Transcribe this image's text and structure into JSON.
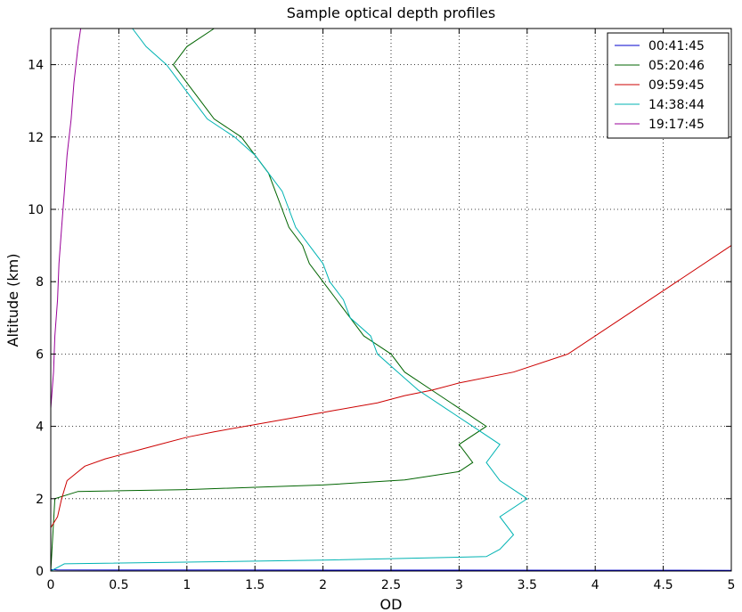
{
  "chart_data": {
    "type": "line",
    "title": "Sample optical depth profiles",
    "xlabel": "OD",
    "ylabel": "Altitude (km)",
    "xlim": [
      0,
      5
    ],
    "ylim": [
      0,
      15
    ],
    "xticks": [
      "0",
      "0.5",
      "1",
      "1.5",
      "2",
      "2.5",
      "3",
      "3.5",
      "4",
      "4.5",
      "5"
    ],
    "yticks": [
      "0",
      "2",
      "4",
      "6",
      "8",
      "10",
      "12",
      "14"
    ],
    "grid": true,
    "legend_position": "top-right",
    "series": [
      {
        "name": "00:41:45",
        "color": "#0000cc",
        "points": [
          [
            5.0,
            0.02
          ],
          [
            0.05,
            0.03
          ],
          [
            0.0,
            0.04
          ]
        ]
      },
      {
        "name": "05:20:46",
        "color": "#006400",
        "points": [
          [
            0.0,
            0.0
          ],
          [
            0.03,
            2.0
          ],
          [
            0.2,
            2.2
          ],
          [
            1.0,
            2.25
          ],
          [
            2.0,
            2.38
          ],
          [
            2.6,
            2.52
          ],
          [
            3.0,
            2.75
          ],
          [
            3.1,
            3.0
          ],
          [
            3.0,
            3.5
          ],
          [
            3.2,
            4.0
          ],
          [
            3.0,
            4.5
          ],
          [
            2.8,
            5.0
          ],
          [
            2.6,
            5.5
          ],
          [
            2.5,
            6.0
          ],
          [
            2.3,
            6.5
          ],
          [
            2.2,
            7.0
          ],
          [
            2.1,
            7.5
          ],
          [
            2.0,
            8.0
          ],
          [
            1.9,
            8.5
          ],
          [
            1.85,
            9.0
          ],
          [
            1.75,
            9.5
          ],
          [
            1.7,
            10.0
          ],
          [
            1.65,
            10.5
          ],
          [
            1.6,
            11.0
          ],
          [
            1.5,
            11.5
          ],
          [
            1.4,
            12.0
          ],
          [
            1.2,
            12.5
          ],
          [
            1.1,
            13.0
          ],
          [
            1.0,
            13.5
          ],
          [
            0.9,
            14.0
          ],
          [
            1.0,
            14.5
          ],
          [
            1.2,
            15.0
          ]
        ]
      },
      {
        "name": "09:59:45",
        "color": "#cc0000",
        "points": [
          [
            0.0,
            1.2
          ],
          [
            0.05,
            1.5
          ],
          [
            0.08,
            2.0
          ],
          [
            0.12,
            2.5
          ],
          [
            0.25,
            2.9
          ],
          [
            0.4,
            3.1
          ],
          [
            0.6,
            3.3
          ],
          [
            0.8,
            3.5
          ],
          [
            1.0,
            3.7
          ],
          [
            1.2,
            3.85
          ],
          [
            1.5,
            4.05
          ],
          [
            1.8,
            4.25
          ],
          [
            2.1,
            4.45
          ],
          [
            2.4,
            4.65
          ],
          [
            2.6,
            4.85
          ],
          [
            2.8,
            5.0
          ],
          [
            3.0,
            5.2
          ],
          [
            3.4,
            5.5
          ],
          [
            3.8,
            6.0
          ],
          [
            4.2,
            7.0
          ],
          [
            4.6,
            8.0
          ],
          [
            5.0,
            9.0
          ]
        ]
      },
      {
        "name": "14:38:44",
        "color": "#00b3b3",
        "points": [
          [
            0.0,
            0.0
          ],
          [
            0.1,
            0.2
          ],
          [
            2.0,
            0.3
          ],
          [
            3.2,
            0.4
          ],
          [
            3.3,
            0.6
          ],
          [
            3.4,
            1.0
          ],
          [
            3.3,
            1.5
          ],
          [
            3.5,
            2.0
          ],
          [
            3.3,
            2.5
          ],
          [
            3.2,
            3.0
          ],
          [
            3.3,
            3.5
          ],
          [
            3.1,
            4.0
          ],
          [
            2.9,
            4.5
          ],
          [
            2.7,
            5.0
          ],
          [
            2.55,
            5.5
          ],
          [
            2.4,
            6.0
          ],
          [
            2.35,
            6.5
          ],
          [
            2.2,
            7.0
          ],
          [
            2.15,
            7.5
          ],
          [
            2.05,
            8.0
          ],
          [
            2.0,
            8.5
          ],
          [
            1.9,
            9.0
          ],
          [
            1.8,
            9.5
          ],
          [
            1.75,
            10.0
          ],
          [
            1.7,
            10.5
          ],
          [
            1.6,
            11.0
          ],
          [
            1.5,
            11.5
          ],
          [
            1.35,
            12.0
          ],
          [
            1.15,
            12.5
          ],
          [
            1.05,
            13.0
          ],
          [
            0.95,
            13.5
          ],
          [
            0.85,
            14.0
          ],
          [
            0.7,
            14.5
          ],
          [
            0.6,
            15.0
          ]
        ]
      },
      {
        "name": "19:17:45",
        "color": "#990099",
        "points": [
          [
            0.0,
            4.5
          ],
          [
            0.02,
            5.5
          ],
          [
            0.03,
            6.5
          ],
          [
            0.05,
            7.5
          ],
          [
            0.06,
            8.5
          ],
          [
            0.08,
            9.5
          ],
          [
            0.1,
            10.5
          ],
          [
            0.12,
            11.5
          ],
          [
            0.15,
            12.5
          ],
          [
            0.17,
            13.5
          ],
          [
            0.2,
            14.5
          ],
          [
            0.22,
            15.0
          ]
        ]
      }
    ]
  }
}
